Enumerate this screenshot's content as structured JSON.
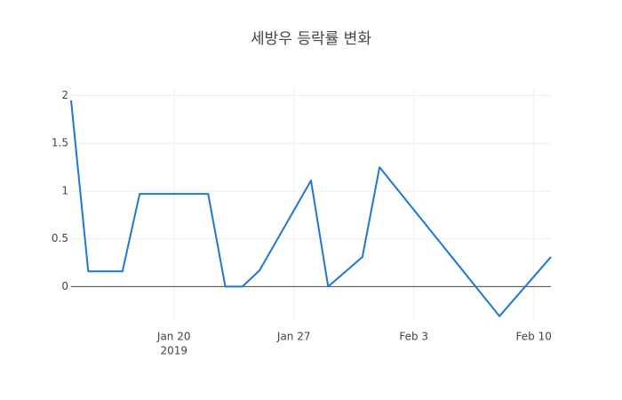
{
  "chart_data": {
    "type": "line",
    "title": "세방우 등락률 변화",
    "x": [
      "2019-01-14",
      "2019-01-15",
      "2019-01-17",
      "2019-01-18",
      "2019-01-22",
      "2019-01-23",
      "2019-01-24",
      "2019-01-25",
      "2019-01-28",
      "2019-01-29",
      "2019-01-31",
      "2019-02-01",
      "2019-02-08",
      "2019-02-11"
    ],
    "series": [
      {
        "color": "#1f77d4",
        "values": [
          1.95,
          0.16,
          0.16,
          0.97,
          0.97,
          0,
          0,
          0.17,
          1.11,
          0,
          0.31,
          1.25,
          -0.31,
          0.31
        ]
      }
    ],
    "xlim": [
      "2019-01-14",
      "2019-02-11"
    ],
    "xticks": [
      {
        "value": "2019-01-20",
        "label": "Jan 20",
        "sublabel": "2019"
      },
      {
        "value": "2019-01-27",
        "label": "Jan 27"
      },
      {
        "value": "2019-02-03",
        "label": "Feb 3"
      },
      {
        "value": "2019-02-10",
        "label": "Feb 10"
      }
    ],
    "ylim": [
      -0.35,
      2.07
    ],
    "yticks": [
      0,
      0.5,
      1,
      1.5,
      2
    ],
    "grid": true
  }
}
